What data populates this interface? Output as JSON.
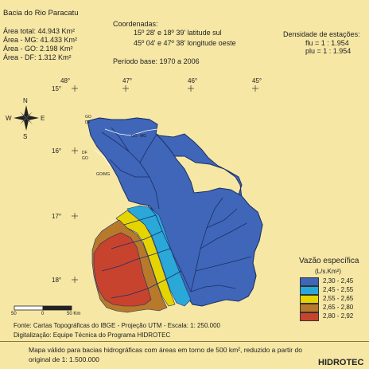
{
  "header": {
    "title": "Bacia do Rio Paracatu",
    "areas": [
      "Área total: 44.943 Km²",
      "Área - MG: 41.433 Km²",
      "Área - GO: 2.198 Km²",
      "Área - DF: 1.312 Km²"
    ],
    "coords_label": "Coordenadas:",
    "coords_lat": "15º 28' e 18º 39'  latitude sul",
    "coords_lon": "45º 04' e 47º 38'  longitude oeste",
    "period": "Período base:  1970  a 2006",
    "density_label": "Densidade de estações:",
    "density_flu": "flu  = 1 : 1.954",
    "density_plu": "plu = 1 : 1.954"
  },
  "graticule": {
    "lon_labels": [
      "48°",
      "47°",
      "46°",
      "45°"
    ],
    "lat_labels": [
      "15°",
      "16°",
      "17°",
      "18°"
    ]
  },
  "compass": {
    "n": "N",
    "s": "S",
    "e": "E",
    "w": "W"
  },
  "state_labels": [
    "GO",
    "DF",
    "GO",
    "MG",
    "DF",
    "GO",
    "GO/MG"
  ],
  "legend": {
    "title": "Vazão específica",
    "unit": "(L/s.Km²)",
    "classes": [
      {
        "label": "2,30 - 2,45",
        "color": "#3f66b8"
      },
      {
        "label": "2,45 - 2,55",
        "color": "#2aa8d8"
      },
      {
        "label": "2,55 - 2,65",
        "color": "#e6d400"
      },
      {
        "label": "2,65 - 2,80",
        "color": "#b8792a"
      },
      {
        "label": "2,80 - 2,92",
        "color": "#c8432e"
      }
    ]
  },
  "scale": {
    "labels": [
      "50",
      "0",
      "50 Km"
    ]
  },
  "credits": {
    "source": "Fonte: Cartas Topográficas do IBGE - Projeção UTM - Escala: 1: 250.000",
    "digitization": "Digitalização: Equipe Técnica do Programa HIDROTEC"
  },
  "footer": {
    "note_line1": "Mapa válido para bacias hidrográficas com áreas em torno de 500 km², reduzido a partir do",
    "note_line2": "original de 1: 1.500.000",
    "brand": "HIDROTEC"
  }
}
